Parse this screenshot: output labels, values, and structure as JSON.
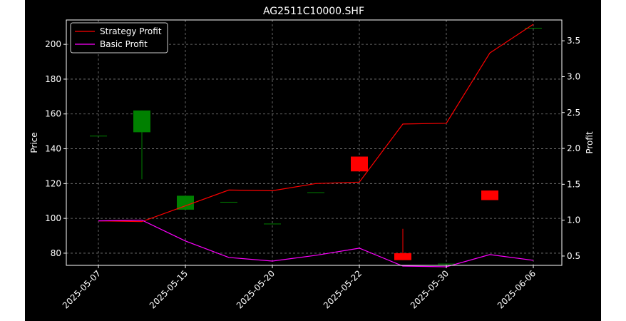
{
  "chart_data": {
    "type": "candlestick",
    "title": "AG2511C10000.SHF",
    "xlabel": "",
    "ylabel": "Price",
    "y2label": "Profit",
    "ylim": [
      73,
      214
    ],
    "y2lim": [
      0.37,
      3.79
    ],
    "yticks": [
      80,
      100,
      120,
      140,
      160,
      180,
      200
    ],
    "y2ticks": [
      "0.5",
      "1.0",
      "1.5",
      "2.0",
      "2.5",
      "3.0",
      "3.5"
    ],
    "y2tick_values": [
      0.5,
      1.0,
      1.5,
      2.0,
      2.5,
      3.0,
      3.5
    ],
    "xticks": [
      "2025-05-07",
      "2025-05-15",
      "2025-05-20",
      "2025-05-22",
      "2025-05-30",
      "2025-06-06"
    ],
    "xtick_index": [
      0,
      2,
      4,
      6,
      8,
      10
    ],
    "grid": true,
    "legend_position": "top-left",
    "colors": {
      "up": "#008000",
      "down": "#ff0000",
      "strategy": "#ff0000",
      "basic": "#ff00ff",
      "grid": "#808080"
    },
    "candles": [
      {
        "o": 147.5,
        "h": 147.5,
        "l": 147.5,
        "c": 147.5
      },
      {
        "o": 149.5,
        "h": 162,
        "l": 122.5,
        "c": 162
      },
      {
        "o": 105,
        "h": 113,
        "l": 105,
        "c": 113
      },
      {
        "o": 109.5,
        "h": 109.5,
        "l": 109.5,
        "c": 109.5
      },
      {
        "o": 97,
        "h": 97,
        "l": 97,
        "c": 97
      },
      {
        "o": 115,
        "h": 115,
        "l": 115,
        "c": 115
      },
      {
        "o": 135.5,
        "h": 135.5,
        "l": 127,
        "c": 127
      },
      {
        "o": 80,
        "h": 94,
        "l": 76,
        "c": 76
      },
      {
        "o": 74,
        "h": 74,
        "l": 74,
        "c": 74
      },
      {
        "o": 116,
        "h": 116,
        "l": 110.5,
        "c": 110.5
      },
      {
        "o": 209.5,
        "h": 209.5,
        "l": 209.5,
        "c": 209.5
      }
    ],
    "series": [
      {
        "name": "Strategy Profit",
        "axis": "right",
        "values": [
          0.99,
          0.98,
          1.2,
          1.42,
          1.41,
          1.51,
          1.53,
          2.34,
          2.35,
          3.33,
          3.73
        ]
      },
      {
        "name": "Basic Profit",
        "axis": "right",
        "values": [
          0.99,
          1.0,
          0.71,
          0.48,
          0.43,
          0.51,
          0.61,
          0.36,
          0.35,
          0.52,
          0.44
        ]
      }
    ]
  }
}
